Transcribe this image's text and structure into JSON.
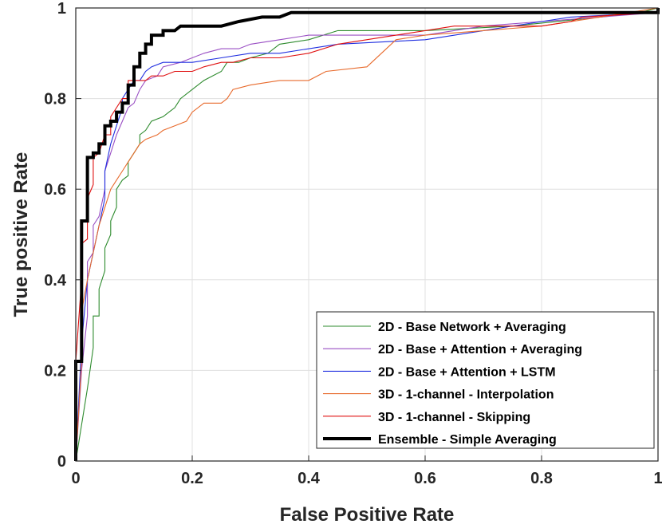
{
  "chart_data": {
    "type": "line",
    "title": "",
    "xlabel": "False Positive Rate",
    "ylabel": "True positive Rate",
    "xlim": [
      0,
      1
    ],
    "ylim": [
      0,
      1
    ],
    "grid": true,
    "legend_position": "bottom-right",
    "x_ticks": [
      "0",
      "0.2",
      "0.4",
      "0.6",
      "0.8",
      "1"
    ],
    "y_ticks": [
      "0",
      "0.2",
      "0.4",
      "0.6",
      "0.8",
      "1"
    ],
    "series": [
      {
        "name": "2D - Base Network + Averaging",
        "color": "#2e8b2e",
        "width": "thin",
        "points": [
          [
            0,
            0
          ],
          [
            0.01,
            0.08
          ],
          [
            0.02,
            0.16
          ],
          [
            0.03,
            0.25
          ],
          [
            0.03,
            0.32
          ],
          [
            0.04,
            0.32
          ],
          [
            0.04,
            0.38
          ],
          [
            0.05,
            0.42
          ],
          [
            0.05,
            0.47
          ],
          [
            0.06,
            0.5
          ],
          [
            0.06,
            0.53
          ],
          [
            0.07,
            0.56
          ],
          [
            0.07,
            0.6
          ],
          [
            0.08,
            0.62
          ],
          [
            0.09,
            0.63
          ],
          [
            0.09,
            0.66
          ],
          [
            0.1,
            0.68
          ],
          [
            0.11,
            0.7
          ],
          [
            0.11,
            0.72
          ],
          [
            0.12,
            0.73
          ],
          [
            0.13,
            0.75
          ],
          [
            0.15,
            0.76
          ],
          [
            0.16,
            0.77
          ],
          [
            0.17,
            0.78
          ],
          [
            0.18,
            0.8
          ],
          [
            0.2,
            0.82
          ],
          [
            0.22,
            0.84
          ],
          [
            0.25,
            0.86
          ],
          [
            0.26,
            0.88
          ],
          [
            0.28,
            0.88
          ],
          [
            0.3,
            0.89
          ],
          [
            0.33,
            0.9
          ],
          [
            0.35,
            0.92
          ],
          [
            0.4,
            0.93
          ],
          [
            0.45,
            0.95
          ],
          [
            0.6,
            0.95
          ],
          [
            0.75,
            0.96
          ],
          [
            0.9,
            0.98
          ],
          [
            0.97,
            0.99
          ],
          [
            1,
            1
          ]
        ]
      },
      {
        "name": "2D - Base + Attention + Averaging",
        "color": "#9a4fc4",
        "width": "thin",
        "points": [
          [
            0,
            0
          ],
          [
            0.01,
            0.2
          ],
          [
            0.02,
            0.32
          ],
          [
            0.02,
            0.44
          ],
          [
            0.03,
            0.46
          ],
          [
            0.03,
            0.52
          ],
          [
            0.04,
            0.54
          ],
          [
            0.05,
            0.6
          ],
          [
            0.05,
            0.64
          ],
          [
            0.06,
            0.68
          ],
          [
            0.07,
            0.72
          ],
          [
            0.08,
            0.75
          ],
          [
            0.09,
            0.78
          ],
          [
            0.1,
            0.79
          ],
          [
            0.11,
            0.82
          ],
          [
            0.12,
            0.84
          ],
          [
            0.14,
            0.85
          ],
          [
            0.15,
            0.87
          ],
          [
            0.18,
            0.88
          ],
          [
            0.2,
            0.89
          ],
          [
            0.22,
            0.9
          ],
          [
            0.25,
            0.91
          ],
          [
            0.28,
            0.91
          ],
          [
            0.3,
            0.92
          ],
          [
            0.35,
            0.93
          ],
          [
            0.4,
            0.94
          ],
          [
            0.5,
            0.94
          ],
          [
            0.6,
            0.94
          ],
          [
            0.7,
            0.96
          ],
          [
            0.8,
            0.97
          ],
          [
            0.9,
            0.98
          ],
          [
            1,
            0.99
          ]
        ]
      },
      {
        "name": "2D - Base + Attention + LSTM",
        "color": "#1f2ee0",
        "width": "thin",
        "points": [
          [
            0,
            0
          ],
          [
            0.01,
            0.26
          ],
          [
            0.02,
            0.4
          ],
          [
            0.03,
            0.46
          ],
          [
            0.04,
            0.52
          ],
          [
            0.05,
            0.58
          ],
          [
            0.05,
            0.64
          ],
          [
            0.06,
            0.7
          ],
          [
            0.07,
            0.74
          ],
          [
            0.08,
            0.78
          ],
          [
            0.08,
            0.8
          ],
          [
            0.09,
            0.82
          ],
          [
            0.1,
            0.84
          ],
          [
            0.11,
            0.84
          ],
          [
            0.12,
            0.86
          ],
          [
            0.13,
            0.87
          ],
          [
            0.15,
            0.88
          ],
          [
            0.2,
            0.88
          ],
          [
            0.25,
            0.89
          ],
          [
            0.3,
            0.9
          ],
          [
            0.35,
            0.9
          ],
          [
            0.45,
            0.92
          ],
          [
            0.6,
            0.93
          ],
          [
            0.7,
            0.95
          ],
          [
            0.8,
            0.97
          ],
          [
            0.85,
            0.98
          ],
          [
            1,
            0.99
          ]
        ]
      },
      {
        "name": "3D - 1-channel - Interpolation",
        "color": "#e86a2c",
        "width": "thin",
        "points": [
          [
            0,
            0
          ],
          [
            0.01,
            0.22
          ],
          [
            0.01,
            0.33
          ],
          [
            0.02,
            0.4
          ],
          [
            0.03,
            0.46
          ],
          [
            0.04,
            0.52
          ],
          [
            0.05,
            0.56
          ],
          [
            0.06,
            0.6
          ],
          [
            0.07,
            0.62
          ],
          [
            0.08,
            0.64
          ],
          [
            0.09,
            0.66
          ],
          [
            0.1,
            0.68
          ],
          [
            0.11,
            0.7
          ],
          [
            0.12,
            0.71
          ],
          [
            0.14,
            0.72
          ],
          [
            0.15,
            0.73
          ],
          [
            0.17,
            0.74
          ],
          [
            0.19,
            0.75
          ],
          [
            0.2,
            0.77
          ],
          [
            0.22,
            0.79
          ],
          [
            0.25,
            0.79
          ],
          [
            0.26,
            0.8
          ],
          [
            0.27,
            0.82
          ],
          [
            0.3,
            0.83
          ],
          [
            0.35,
            0.84
          ],
          [
            0.4,
            0.84
          ],
          [
            0.43,
            0.86
          ],
          [
            0.5,
            0.87
          ],
          [
            0.55,
            0.93
          ],
          [
            0.6,
            0.94
          ],
          [
            0.7,
            0.95
          ],
          [
            0.8,
            0.96
          ],
          [
            0.9,
            0.98
          ],
          [
            1,
            1
          ]
        ]
      },
      {
        "name": "3D - 1-channel - Skipping",
        "color": "#e01010",
        "width": "thin",
        "points": [
          [
            0,
            0
          ],
          [
            0,
            0.22
          ],
          [
            0.01,
            0.4
          ],
          [
            0.01,
            0.48
          ],
          [
            0.02,
            0.49
          ],
          [
            0.02,
            0.58
          ],
          [
            0.03,
            0.61
          ],
          [
            0.03,
            0.67
          ],
          [
            0.04,
            0.68
          ],
          [
            0.05,
            0.72
          ],
          [
            0.06,
            0.72
          ],
          [
            0.06,
            0.76
          ],
          [
            0.07,
            0.78
          ],
          [
            0.08,
            0.8
          ],
          [
            0.09,
            0.8
          ],
          [
            0.09,
            0.84
          ],
          [
            0.1,
            0.84
          ],
          [
            0.12,
            0.84
          ],
          [
            0.13,
            0.85
          ],
          [
            0.15,
            0.85
          ],
          [
            0.17,
            0.86
          ],
          [
            0.2,
            0.86
          ],
          [
            0.22,
            0.87
          ],
          [
            0.25,
            0.88
          ],
          [
            0.27,
            0.88
          ],
          [
            0.3,
            0.89
          ],
          [
            0.35,
            0.89
          ],
          [
            0.4,
            0.9
          ],
          [
            0.45,
            0.92
          ],
          [
            0.55,
            0.94
          ],
          [
            0.6,
            0.95
          ],
          [
            0.65,
            0.96
          ],
          [
            0.8,
            0.96
          ],
          [
            0.85,
            0.97
          ],
          [
            0.87,
            0.98
          ],
          [
            1,
            0.99
          ]
        ]
      },
      {
        "name": "Ensemble - Simple Averaging",
        "color": "#000000",
        "width": "thick",
        "points": [
          [
            0,
            0
          ],
          [
            0,
            0.22
          ],
          [
            0.01,
            0.22
          ],
          [
            0.01,
            0.53
          ],
          [
            0.02,
            0.53
          ],
          [
            0.02,
            0.67
          ],
          [
            0.03,
            0.67
          ],
          [
            0.03,
            0.68
          ],
          [
            0.04,
            0.68
          ],
          [
            0.04,
            0.7
          ],
          [
            0.05,
            0.7
          ],
          [
            0.05,
            0.74
          ],
          [
            0.06,
            0.74
          ],
          [
            0.06,
            0.75
          ],
          [
            0.07,
            0.75
          ],
          [
            0.07,
            0.77
          ],
          [
            0.08,
            0.77
          ],
          [
            0.08,
            0.79
          ],
          [
            0.09,
            0.79
          ],
          [
            0.09,
            0.83
          ],
          [
            0.1,
            0.83
          ],
          [
            0.1,
            0.87
          ],
          [
            0.11,
            0.87
          ],
          [
            0.11,
            0.9
          ],
          [
            0.12,
            0.9
          ],
          [
            0.12,
            0.92
          ],
          [
            0.13,
            0.92
          ],
          [
            0.13,
            0.94
          ],
          [
            0.15,
            0.94
          ],
          [
            0.15,
            0.95
          ],
          [
            0.17,
            0.95
          ],
          [
            0.18,
            0.96
          ],
          [
            0.25,
            0.96
          ],
          [
            0.28,
            0.97
          ],
          [
            0.32,
            0.98
          ],
          [
            0.35,
            0.98
          ],
          [
            0.37,
            0.99
          ],
          [
            1,
            0.99
          ],
          [
            1,
            1
          ]
        ]
      }
    ]
  }
}
